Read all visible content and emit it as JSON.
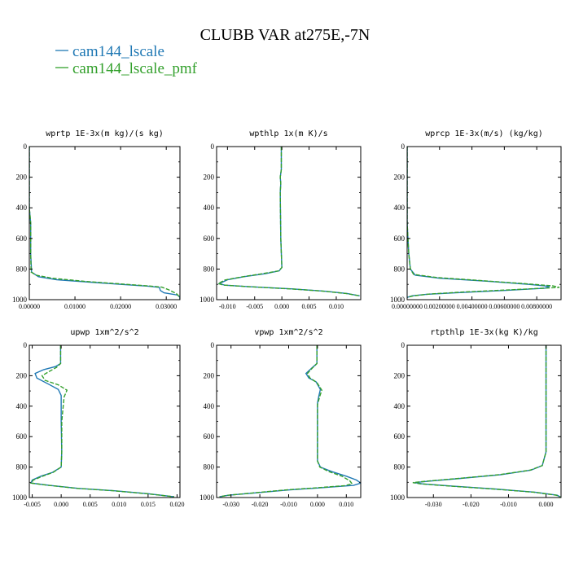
{
  "figure": {
    "title": "CLUBB VAR at275E,-7N",
    "legend": [
      {
        "name": "cam144_lscale",
        "color": "#1f78b4",
        "dash": false
      },
      {
        "name": "cam144_lscale_pmf",
        "color": "#33a02c",
        "dash": true
      }
    ]
  },
  "chart_data": [
    {
      "type": "line",
      "title": "wprtp  1E-3x(m kg)/(s kg)",
      "xlim": [
        0,
        0.033
      ],
      "ylim": [
        1000,
        0
      ],
      "xticks": [
        0,
        0.01,
        0.02,
        0.03
      ],
      "xtick_labels": [
        "0.00000",
        "0.01000",
        "0.02000",
        "0.03000"
      ],
      "yticks": [
        0,
        200,
        400,
        600,
        800,
        1000
      ],
      "series": [
        {
          "name": "cam144_lscale",
          "points": [
            [
              0.0,
              0
            ],
            [
              0.0,
              400
            ],
            [
              0.0003,
              500
            ],
            [
              0.0003,
              700
            ],
            [
              0.0005,
              820
            ],
            [
              0.002,
              850
            ],
            [
              0.006,
              870
            ],
            [
              0.013,
              885
            ],
            [
              0.02,
              900
            ],
            [
              0.026,
              912
            ],
            [
              0.0285,
              920
            ],
            [
              0.0287,
              940
            ],
            [
              0.0295,
              955
            ],
            [
              0.0325,
              970
            ],
            [
              0.033,
              985
            ],
            [
              0.033,
              1000
            ]
          ]
        },
        {
          "name": "cam144_lscale_pmf",
          "points": [
            [
              0.0,
              0
            ],
            [
              0.0,
              400
            ],
            [
              0.0003,
              500
            ],
            [
              0.0003,
              700
            ],
            [
              0.0004,
              820
            ],
            [
              0.0015,
              840
            ],
            [
              0.005,
              860
            ],
            [
              0.012,
              880
            ],
            [
              0.02,
              897
            ],
            [
              0.026,
              910
            ],
            [
              0.029,
              918
            ],
            [
              0.0305,
              935
            ],
            [
              0.0322,
              960
            ],
            [
              0.033,
              985
            ],
            [
              0.033,
              1000
            ]
          ]
        }
      ]
    },
    {
      "type": "line",
      "title": "wpthlp  1x(m K)/s",
      "xlim": [
        -0.012,
        0.0145
      ],
      "ylim": [
        1000,
        0
      ],
      "xticks": [
        -0.01,
        -0.005,
        0,
        0.005,
        0.01
      ],
      "xtick_labels": [
        "-0.010",
        "-0.005",
        "0.000",
        "0.005",
        "0.010"
      ],
      "yticks": [
        0,
        200,
        400,
        600,
        800,
        1000
      ],
      "series": [
        {
          "name": "cam144_lscale",
          "points": [
            [
              -0.0001,
              0
            ],
            [
              -0.0001,
              150
            ],
            [
              -0.0003,
              200
            ],
            [
              -0.0002,
              240
            ],
            [
              -0.0003,
              300
            ],
            [
              -0.0002,
              600
            ],
            [
              0.0,
              790
            ],
            [
              -0.0005,
              812
            ],
            [
              -0.003,
              830
            ],
            [
              -0.007,
              850
            ],
            [
              -0.01,
              870
            ],
            [
              -0.0115,
              895
            ],
            [
              -0.0105,
              905
            ],
            [
              -0.006,
              915
            ],
            [
              0.002,
              930
            ],
            [
              0.008,
              945
            ],
            [
              0.012,
              960
            ],
            [
              0.0143,
              975
            ]
          ]
        },
        {
          "name": "cam144_lscale_pmf",
          "points": [
            [
              -0.0001,
              0
            ],
            [
              -0.0001,
              150
            ],
            [
              -0.0003,
              200
            ],
            [
              -0.0002,
              240
            ],
            [
              -0.0003,
              300
            ],
            [
              -0.0002,
              600
            ],
            [
              0.0,
              790
            ],
            [
              -0.0006,
              812
            ],
            [
              -0.0035,
              830
            ],
            [
              -0.0075,
              852
            ],
            [
              -0.0105,
              872
            ],
            [
              -0.0117,
              895
            ],
            [
              -0.0107,
              905
            ],
            [
              -0.0062,
              915
            ],
            [
              0.0018,
              930
            ],
            [
              0.0078,
              945
            ],
            [
              0.0118,
              960
            ],
            [
              0.0143,
              975
            ]
          ]
        }
      ]
    },
    {
      "type": "line",
      "title": "wprcp  1E-3x(m/s) (kg/kg)",
      "xlim": [
        0,
        0.0095
      ],
      "ylim": [
        1000,
        0
      ],
      "xticks": [
        0,
        0.002,
        0.004,
        0.006,
        0.008
      ],
      "xtick_labels": [
        "0.00000000",
        "0.00200000",
        "0.00400000",
        "0.00600000",
        "0.00800000"
      ],
      "yticks": [
        0,
        200,
        400,
        600,
        800,
        1000
      ],
      "series": [
        {
          "name": "cam144_lscale",
          "points": [
            [
              0.0,
              0
            ],
            [
              0.0,
              500
            ],
            [
              0.0001,
              700
            ],
            [
              0.0002,
              800
            ],
            [
              0.0005,
              840
            ],
            [
              0.002,
              860
            ],
            [
              0.005,
              880
            ],
            [
              0.0075,
              900
            ],
            [
              0.0088,
              913
            ],
            [
              0.0085,
              925
            ],
            [
              0.006,
              940
            ],
            [
              0.003,
              955
            ],
            [
              0.0012,
              965
            ],
            [
              0.0003,
              975
            ],
            [
              0.0,
              985
            ]
          ]
        },
        {
          "name": "cam144_lscale_pmf",
          "points": [
            [
              0.0,
              0
            ],
            [
              0.0,
              500
            ],
            [
              0.0001,
              700
            ],
            [
              0.0002,
              800
            ],
            [
              0.0004,
              835
            ],
            [
              0.0018,
              855
            ],
            [
              0.0045,
              875
            ],
            [
              0.0072,
              895
            ],
            [
              0.009,
              910
            ],
            [
              0.0094,
              920
            ],
            [
              0.0065,
              935
            ],
            [
              0.0035,
              950
            ],
            [
              0.0014,
              963
            ],
            [
              0.0004,
              975
            ],
            [
              0.0,
              985
            ]
          ]
        }
      ]
    },
    {
      "type": "line",
      "title": "upwp  1xm^2/s^2",
      "xlim": [
        -0.0055,
        0.0205
      ],
      "ylim": [
        1000,
        0
      ],
      "xticks": [
        -0.005,
        0,
        0.005,
        0.01,
        0.015,
        0.02
      ],
      "xtick_labels": [
        "-0.005",
        "0.000",
        "0.005",
        "0.010",
        "0.015",
        "0.020"
      ],
      "yticks": [
        0,
        200,
        400,
        600,
        800,
        1000
      ],
      "series": [
        {
          "name": "cam144_lscale",
          "points": [
            [
              -0.0001,
              0
            ],
            [
              -0.0001,
              120
            ],
            [
              -0.001,
              140
            ],
            [
              -0.003,
              160
            ],
            [
              -0.0045,
              185
            ],
            [
              -0.0042,
              215
            ],
            [
              -0.0022,
              255
            ],
            [
              -0.0005,
              290
            ],
            [
              0.0,
              330
            ],
            [
              0.0,
              500
            ],
            [
              0.0001,
              700
            ],
            [
              0.0,
              800
            ],
            [
              -0.0015,
              835
            ],
            [
              -0.0035,
              860
            ],
            [
              -0.005,
              885
            ],
            [
              -0.0052,
              905
            ],
            [
              -0.002,
              920
            ],
            [
              0.003,
              940
            ],
            [
              0.009,
              955
            ],
            [
              0.015,
              975
            ],
            [
              0.0195,
              995
            ]
          ]
        },
        {
          "name": "cam144_lscale_pmf",
          "points": [
            [
              -0.0001,
              0
            ],
            [
              -0.0001,
              120
            ],
            [
              -0.0008,
              145
            ],
            [
              -0.0022,
              175
            ],
            [
              -0.0033,
              200
            ],
            [
              -0.0028,
              230
            ],
            [
              -0.0005,
              260
            ],
            [
              0.001,
              295
            ],
            [
              0.0005,
              340
            ],
            [
              0.0001,
              500
            ],
            [
              0.0001,
              700
            ],
            [
              0.0,
              800
            ],
            [
              -0.0014,
              835
            ],
            [
              -0.0032,
              860
            ],
            [
              -0.0048,
              885
            ],
            [
              -0.0052,
              905
            ],
            [
              -0.0022,
              920
            ],
            [
              0.0028,
              940
            ],
            [
              0.0088,
              955
            ],
            [
              0.0148,
              975
            ],
            [
              0.0195,
              995
            ]
          ]
        }
      ]
    },
    {
      "type": "line",
      "title": "vpwp  1xm^2/s^2",
      "xlim": [
        -0.035,
        0.015
      ],
      "ylim": [
        1000,
        0
      ],
      "xticks": [
        -0.03,
        -0.02,
        -0.01,
        0,
        0.01
      ],
      "xtick_labels": [
        "-0.030",
        "-0.020",
        "-0.010",
        "0.000",
        "0.010"
      ],
      "yticks": [
        0,
        200,
        400,
        600,
        800,
        1000
      ],
      "series": [
        {
          "name": "cam144_lscale",
          "points": [
            [
              -0.0002,
              0
            ],
            [
              -0.0002,
              120
            ],
            [
              -0.002,
              150
            ],
            [
              -0.004,
              185
            ],
            [
              -0.003,
              215
            ],
            [
              -0.0005,
              240
            ],
            [
              0.001,
              290
            ],
            [
              0.0005,
              330
            ],
            [
              0.0,
              380
            ],
            [
              0.0,
              600
            ],
            [
              0.0,
              760
            ],
            [
              0.001,
              800
            ],
            [
              0.005,
              830
            ],
            [
              0.01,
              860
            ],
            [
              0.0135,
              885
            ],
            [
              0.015,
              905
            ],
            [
              0.0125,
              920
            ],
            [
              0.002,
              935
            ],
            [
              -0.01,
              950
            ],
            [
              -0.022,
              970
            ],
            [
              -0.031,
              985
            ],
            [
              -0.034,
              995
            ]
          ]
        },
        {
          "name": "cam144_lscale_pmf",
          "points": [
            [
              -0.0002,
              0
            ],
            [
              -0.0002,
              120
            ],
            [
              -0.0018,
              150
            ],
            [
              -0.0035,
              185
            ],
            [
              -0.0026,
              215
            ],
            [
              -0.0002,
              245
            ],
            [
              0.0015,
              295
            ],
            [
              0.0008,
              335
            ],
            [
              0.0,
              390
            ],
            [
              0.0,
              600
            ],
            [
              0.0,
              760
            ],
            [
              0.0008,
              800
            ],
            [
              0.004,
              830
            ],
            [
              0.0085,
              860
            ],
            [
              0.0112,
              890
            ],
            [
              0.012,
              910
            ],
            [
              0.0095,
              922
            ],
            [
              0.0005,
              935
            ],
            [
              -0.011,
              950
            ],
            [
              -0.0225,
              970
            ],
            [
              -0.031,
              985
            ],
            [
              -0.034,
              995
            ]
          ]
        }
      ]
    },
    {
      "type": "line",
      "title": "rtpthlp  1E-3x(kg K)/kg",
      "xlim": [
        -0.037,
        0.004
      ],
      "ylim": [
        1000,
        0
      ],
      "xticks": [
        -0.03,
        -0.02,
        -0.01,
        0
      ],
      "xtick_labels": [
        "-0.030",
        "-0.020",
        "-0.010",
        "0.000"
      ],
      "yticks": [
        0,
        200,
        400,
        600,
        800,
        1000
      ],
      "series": [
        {
          "name": "cam144_lscale",
          "points": [
            [
              0.0,
              0
            ],
            [
              0.0,
              400
            ],
            [
              0.0,
              700
            ],
            [
              -0.001,
              790
            ],
            [
              -0.004,
              820
            ],
            [
              -0.012,
              850
            ],
            [
              -0.023,
              875
            ],
            [
              -0.031,
              892
            ],
            [
              -0.035,
              902
            ],
            [
              -0.033,
              910
            ],
            [
              -0.025,
              925
            ],
            [
              -0.013,
              945
            ],
            [
              -0.003,
              965
            ],
            [
              0.003,
              985
            ],
            [
              0.004,
              1000
            ]
          ]
        },
        {
          "name": "cam144_lscale_pmf",
          "points": [
            [
              0.0,
              0
            ],
            [
              0.0,
              400
            ],
            [
              0.0,
              700
            ],
            [
              -0.001,
              790
            ],
            [
              -0.0042,
              820
            ],
            [
              -0.0125,
              850
            ],
            [
              -0.0235,
              875
            ],
            [
              -0.0315,
              892
            ],
            [
              -0.0355,
              902
            ],
            [
              -0.0335,
              910
            ],
            [
              -0.0255,
              925
            ],
            [
              -0.0135,
              945
            ],
            [
              -0.0033,
              965
            ],
            [
              0.0028,
              985
            ],
            [
              0.004,
              1000
            ]
          ]
        }
      ]
    }
  ]
}
